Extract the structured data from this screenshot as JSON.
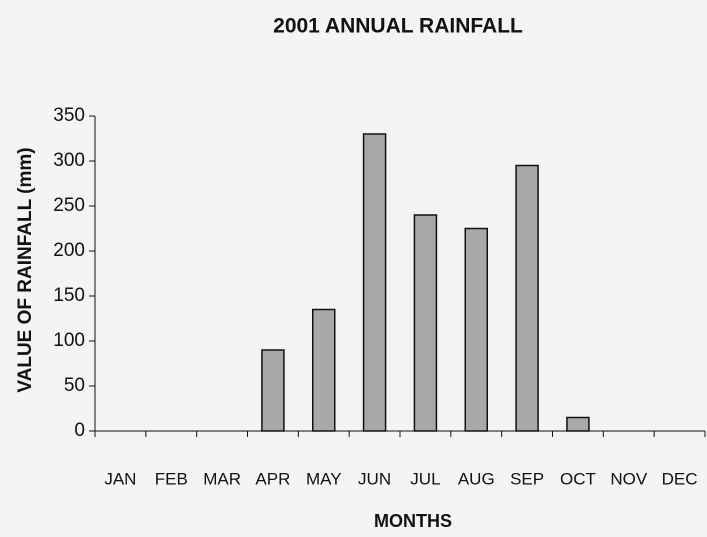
{
  "chart_data": {
    "type": "bar",
    "title": "2001 ANNUAL RAINFALL",
    "x_label": "MONTHS",
    "y_label": "VALUE OF RAINFALL (mm)",
    "categories": [
      "JAN",
      "FEB",
      "MAR",
      "APR",
      "MAY",
      "JUN",
      "JUL",
      "AUG",
      "SEP",
      "OCT",
      "NOV",
      "DEC"
    ],
    "values": [
      0,
      0,
      0,
      90,
      135,
      330,
      240,
      225,
      295,
      15,
      0,
      0
    ],
    "color": "#a8a8a8",
    "ylim": [
      0,
      350
    ],
    "yticks": [
      0,
      50,
      100,
      150,
      200,
      250,
      300,
      350
    ],
    "grid": false
  }
}
